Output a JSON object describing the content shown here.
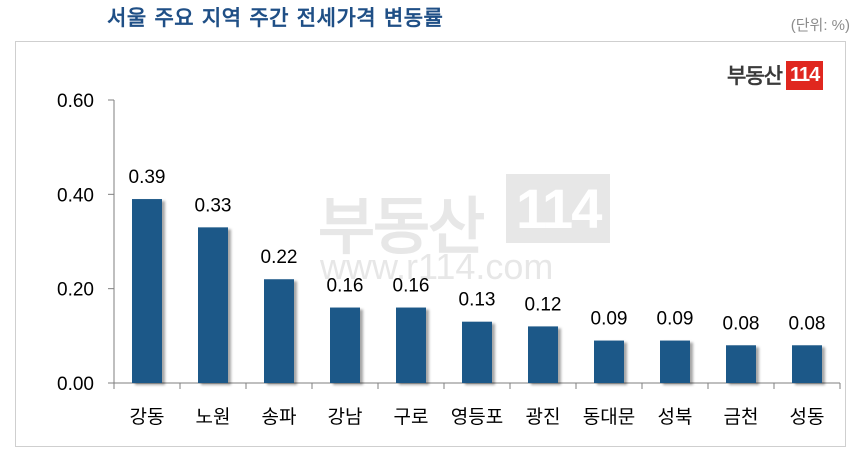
{
  "header": {
    "title": "서울 주요 지역 주간 전세가격 변동률",
    "unit": "(단위: %)"
  },
  "logo": {
    "text": "부동산",
    "number": "114"
  },
  "watermark": {
    "text": "부동산",
    "number": "114",
    "url": "www.r114.com"
  },
  "colors": {
    "bar": "#1f5988",
    "title": "#1f4f86",
    "logo_accent": "#e0271f"
  },
  "chart_data": {
    "type": "bar",
    "title": "서울 주요 지역 주간 전세가격 변동률",
    "categories": [
      "강동",
      "노원",
      "송파",
      "강남",
      "구로",
      "영등포",
      "광진",
      "동대문",
      "성북",
      "금천",
      "성동"
    ],
    "values": [
      0.39,
      0.33,
      0.22,
      0.16,
      0.16,
      0.13,
      0.12,
      0.09,
      0.09,
      0.08,
      0.08
    ],
    "value_labels": [
      "0.39",
      "0.33",
      "0.22",
      "0.16",
      "0.16",
      "0.13",
      "0.12",
      "0.09",
      "0.09",
      "0.08",
      "0.08"
    ],
    "yticks": [
      "0.00",
      "0.20",
      "0.40",
      "0.60"
    ],
    "ylim": [
      0,
      0.6
    ],
    "xlabel": "",
    "ylabel": "",
    "grid": false,
    "legend": "none"
  }
}
